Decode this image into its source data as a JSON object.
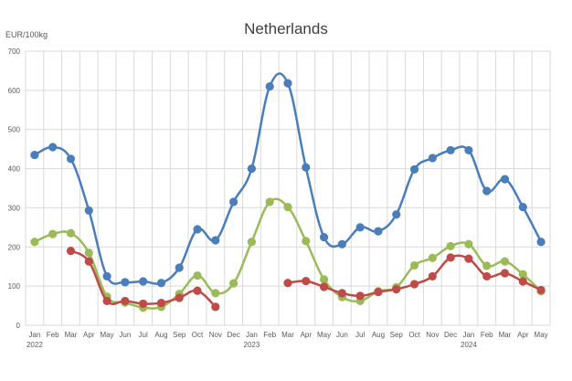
{
  "chart_data": {
    "type": "line",
    "title": "Netherlands",
    "unit_label": "EUR/100kg",
    "ylim": [
      0,
      700
    ],
    "yticks": [
      0,
      100,
      200,
      300,
      400,
      500,
      600,
      700
    ],
    "grid": true,
    "legend": "none",
    "smooth": true,
    "categories": [
      "Jan",
      "Feb",
      "Mar",
      "Apr",
      "May",
      "Jun",
      "Jul",
      "Aug",
      "Sep",
      "Oct",
      "Nov",
      "Dec",
      "Jan",
      "Feb",
      "Mar",
      "Apr",
      "May",
      "Jun",
      "Jul",
      "Aug",
      "Sep",
      "Oct",
      "Nov",
      "Dec",
      "Jan",
      "Feb",
      "Mar",
      "Apr",
      "May"
    ],
    "year_labels": [
      {
        "index": 0,
        "label": "2022"
      },
      {
        "index": 12,
        "label": "2023"
      },
      {
        "index": 24,
        "label": "2024"
      }
    ],
    "series": [
      {
        "color": "#4a7ebb",
        "values": [
          435,
          455,
          425,
          293,
          125,
          110,
          112,
          108,
          147,
          245,
          217,
          315,
          400,
          610,
          618,
          403,
          225,
          207,
          250,
          240,
          283,
          398,
          427,
          447,
          447,
          343,
          373,
          302,
          213
        ]
      },
      {
        "color": "#9bbb59",
        "values": [
          213,
          233,
          235,
          185,
          73,
          58,
          45,
          47,
          80,
          127,
          82,
          107,
          213,
          315,
          302,
          215,
          117,
          72,
          62,
          87,
          97,
          153,
          172,
          202,
          207,
          152,
          163,
          130,
          87
        ]
      },
      {
        "color": "#be4b48",
        "values": [
          null,
          null,
          190,
          163,
          62,
          62,
          55,
          57,
          70,
          88,
          47,
          null,
          null,
          null,
          108,
          113,
          98,
          82,
          75,
          85,
          92,
          105,
          125,
          173,
          170,
          125,
          133,
          112,
          90
        ]
      }
    ]
  }
}
